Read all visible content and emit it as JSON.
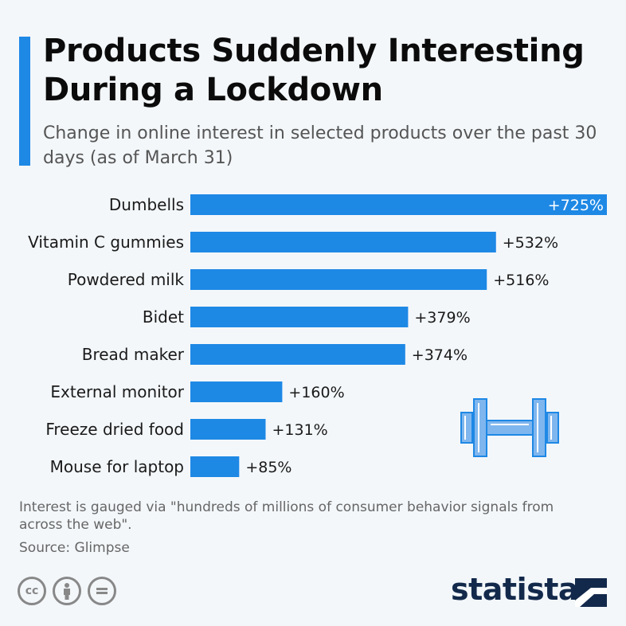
{
  "header": {
    "title": "Products Suddenly Interesting During a Lockdown",
    "subtitle": "Change in online interest in selected products over the past 30 days (as of March 31)"
  },
  "chart_data": {
    "type": "bar",
    "orientation": "horizontal",
    "categories": [
      "Dumbells",
      "Vitamin C gummies",
      "Powdered milk",
      "Bidet",
      "Bread maker",
      "External monitor",
      "Freeze dried food",
      "Mouse for laptop"
    ],
    "values": [
      725,
      532,
      516,
      379,
      374,
      160,
      131,
      85
    ],
    "value_labels": [
      "+725%",
      "+532%",
      "+516%",
      "+379%",
      "+374%",
      "+160%",
      "+131%",
      "+85%"
    ],
    "xlim": [
      0,
      725
    ],
    "grid": false,
    "bar_color": "#1e88e5"
  },
  "footer": {
    "note": "Interest is gauged via \"hundreds of millions of consumer behavior signals from across the web\".",
    "source": "Source: Glimpse",
    "brand": "statista"
  },
  "icons": {
    "license": [
      "cc-icon",
      "by-icon",
      "nd-icon"
    ],
    "illustration": "dumbbell-icon",
    "brand_mark": "statista-logo-icon"
  },
  "colors": {
    "accent": "#1e88e5",
    "brand": "#13294b"
  }
}
